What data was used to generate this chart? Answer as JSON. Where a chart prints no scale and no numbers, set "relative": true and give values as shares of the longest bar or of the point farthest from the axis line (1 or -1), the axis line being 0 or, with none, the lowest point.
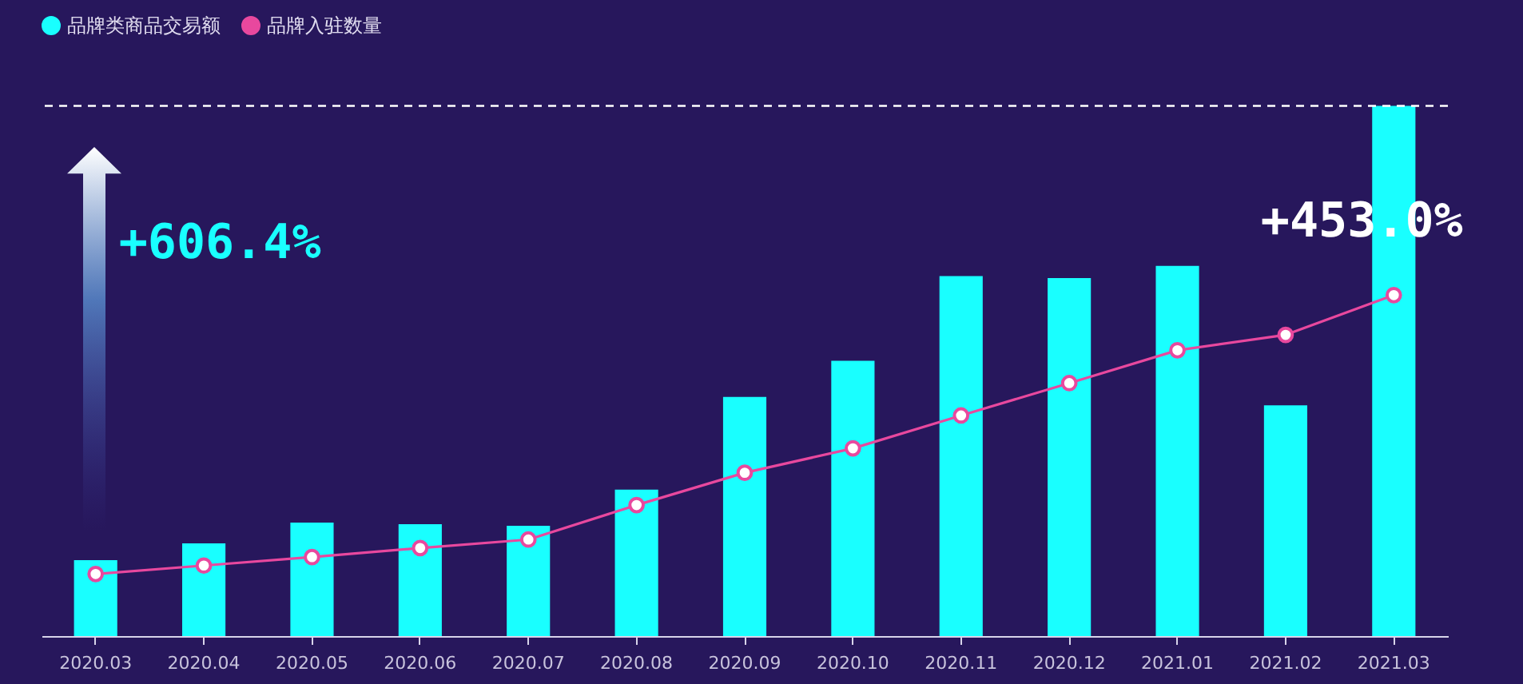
{
  "chart_data": {
    "type": "bar",
    "relative": true,
    "categories": [
      "2020.03",
      "2020.04",
      "2020.05",
      "2020.06",
      "2020.07",
      "2020.08",
      "2020.09",
      "2020.10",
      "2020.11",
      "2020.12",
      "2021.01",
      "2021.02",
      "2021.03"
    ],
    "series": [
      {
        "name": "品牌类商品交易额",
        "color": "#19ffff",
        "values": [
          0.143,
          0.175,
          0.214,
          0.211,
          0.208,
          0.276,
          0.451,
          0.519,
          0.679,
          0.675,
          0.698,
          0.435,
          1
        ]
      },
      {
        "name": "品牌入驻数量",
        "type": "line",
        "color": "#e8489e",
        "values": [
          0.117,
          0.133,
          0.149,
          0.166,
          0.182,
          0.247,
          0.308,
          0.354,
          0.416,
          0.477,
          0.539,
          0.568,
          0.643
        ]
      }
    ],
    "annotations": [
      "+606.4%",
      "+453.0%"
    ],
    "ref_lines": [
      {
        "axis": "y",
        "value": 1,
        "color": "#ffffff",
        "line_style": "dashed"
      }
    ],
    "legend": "top",
    "marker": "circle"
  }
}
